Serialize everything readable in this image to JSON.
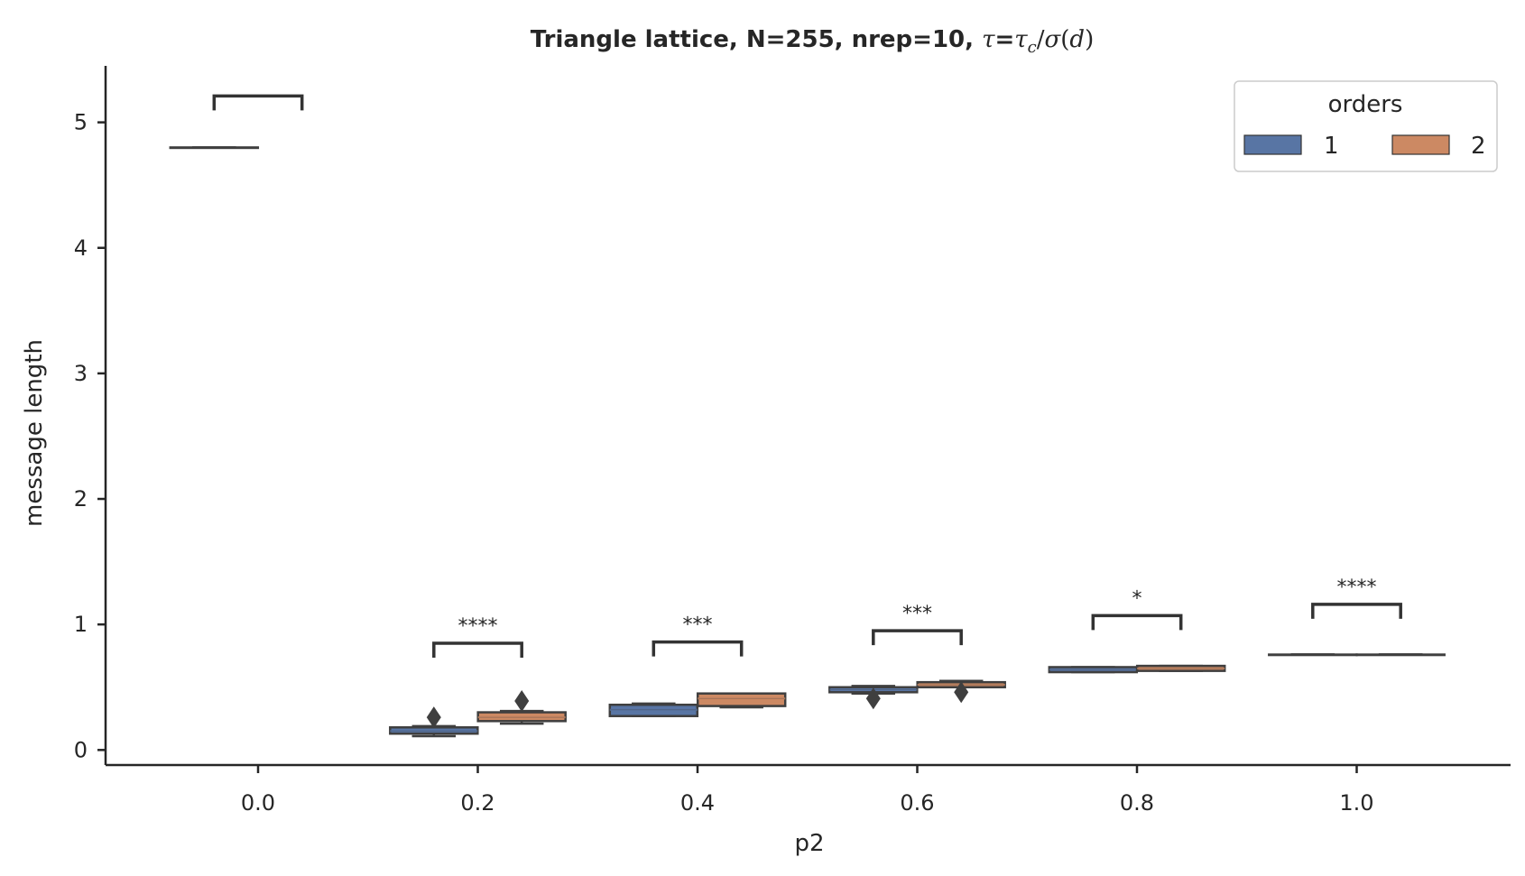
{
  "chart_data": {
    "type": "box",
    "title_parts": {
      "main": "Triangle lattice, N=255, nrep=10, ",
      "tau": "τ",
      "eq": "=",
      "tau_c": "τ",
      "c_sub": "c",
      "slash": "/",
      "sigma": "σ",
      "paren_open": "(",
      "d": "d",
      "paren_close": ")"
    },
    "xlabel": "p2",
    "ylabel": "message length",
    "categories": [
      "0.0",
      "0.2",
      "0.4",
      "0.6",
      "0.8",
      "1.0"
    ],
    "ylim": [
      -0.12,
      5.45
    ],
    "yticks": [
      0,
      1,
      2,
      3,
      4,
      5
    ],
    "ytick_labels": [
      "0",
      "1",
      "2",
      "3",
      "4",
      "5"
    ],
    "legend": {
      "title": "orders",
      "position": "top-right",
      "entries": [
        "1",
        "2"
      ]
    },
    "series": [
      {
        "name": "1",
        "color": "#5875a4",
        "boxes": [
          {
            "category": "0.0",
            "min": 4.8,
            "q1": 4.8,
            "median": 4.8,
            "q3": 4.8,
            "max": 4.8,
            "outliers": []
          },
          {
            "category": "0.2",
            "min": 0.11,
            "q1": 0.13,
            "median": 0.15,
            "q3": 0.18,
            "max": 0.19,
            "outliers": [
              0.26
            ]
          },
          {
            "category": "0.4",
            "min": 0.27,
            "q1": 0.27,
            "median": 0.32,
            "q3": 0.36,
            "max": 0.37,
            "outliers": []
          },
          {
            "category": "0.6",
            "min": 0.45,
            "q1": 0.46,
            "median": 0.48,
            "q3": 0.5,
            "max": 0.51,
            "outliers": [
              0.41
            ]
          },
          {
            "category": "0.8",
            "min": 0.62,
            "q1": 0.62,
            "median": 0.64,
            "q3": 0.66,
            "max": 0.66,
            "outliers": []
          },
          {
            "category": "1.0",
            "min": 0.76,
            "q1": 0.76,
            "median": 0.76,
            "q3": 0.76,
            "max": 0.76,
            "outliers": []
          }
        ]
      },
      {
        "name": "2",
        "color": "#cc8963",
        "boxes": [
          {
            "category": "0.0",
            "min": null,
            "q1": null,
            "median": null,
            "q3": null,
            "max": null,
            "outliers": []
          },
          {
            "category": "0.2",
            "min": 0.21,
            "q1": 0.23,
            "median": 0.26,
            "q3": 0.3,
            "max": 0.31,
            "outliers": [
              0.39
            ]
          },
          {
            "category": "0.4",
            "min": 0.34,
            "q1": 0.35,
            "median": 0.41,
            "q3": 0.45,
            "max": 0.45,
            "outliers": []
          },
          {
            "category": "0.6",
            "min": 0.5,
            "q1": 0.5,
            "median": 0.52,
            "q3": 0.54,
            "max": 0.55,
            "outliers": [
              0.46
            ]
          },
          {
            "category": "0.8",
            "min": 0.63,
            "q1": 0.63,
            "median": 0.65,
            "q3": 0.67,
            "max": 0.67,
            "outliers": []
          },
          {
            "category": "1.0",
            "min": 0.76,
            "q1": 0.76,
            "median": 0.76,
            "q3": 0.76,
            "max": 0.76,
            "outliers": []
          }
        ]
      }
    ],
    "significance": [
      {
        "category": "0.0",
        "bracket_y": 5.21,
        "label": ""
      },
      {
        "category": "0.2",
        "bracket_y": 0.85,
        "label": "****"
      },
      {
        "category": "0.4",
        "bracket_y": 0.86,
        "label": "***"
      },
      {
        "category": "0.6",
        "bracket_y": 0.95,
        "label": "***"
      },
      {
        "category": "0.8",
        "bracket_y": 1.07,
        "label": "*"
      },
      {
        "category": "1.0",
        "bracket_y": 1.16,
        "label": "****"
      }
    ]
  }
}
